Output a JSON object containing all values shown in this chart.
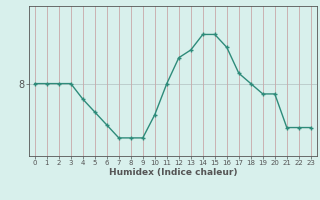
{
  "x": [
    0,
    1,
    2,
    3,
    4,
    5,
    6,
    7,
    8,
    9,
    10,
    11,
    12,
    13,
    14,
    15,
    16,
    17,
    18,
    19,
    20,
    21,
    22,
    23
  ],
  "y": [
    8,
    8,
    8,
    8,
    7.4,
    6.9,
    6.4,
    5.9,
    5.9,
    5.9,
    6.8,
    8.0,
    9.0,
    9.3,
    9.9,
    9.9,
    9.4,
    8.4,
    8.0,
    7.6,
    7.6,
    6.3,
    6.3,
    6.3
  ],
  "line_color": "#2e8b7a",
  "marker": "+",
  "bg_color": "#d8f0ec",
  "ylabel_text": "8",
  "xlabel_text": "Humidex (Indice chaleur)",
  "xlim": [
    -0.5,
    23.5
  ],
  "ylim": [
    5.2,
    11.0
  ],
  "ytick_pos": 8.0,
  "axis_color": "#555555",
  "vgrid_color": "#c8a8a8",
  "hgrid_color": "#b8c8c8",
  "tick_fontsize": 5.0,
  "xlabel_fontsize": 6.5,
  "ylabel_fontsize": 7.0,
  "linewidth": 1.0,
  "markersize": 3.5
}
